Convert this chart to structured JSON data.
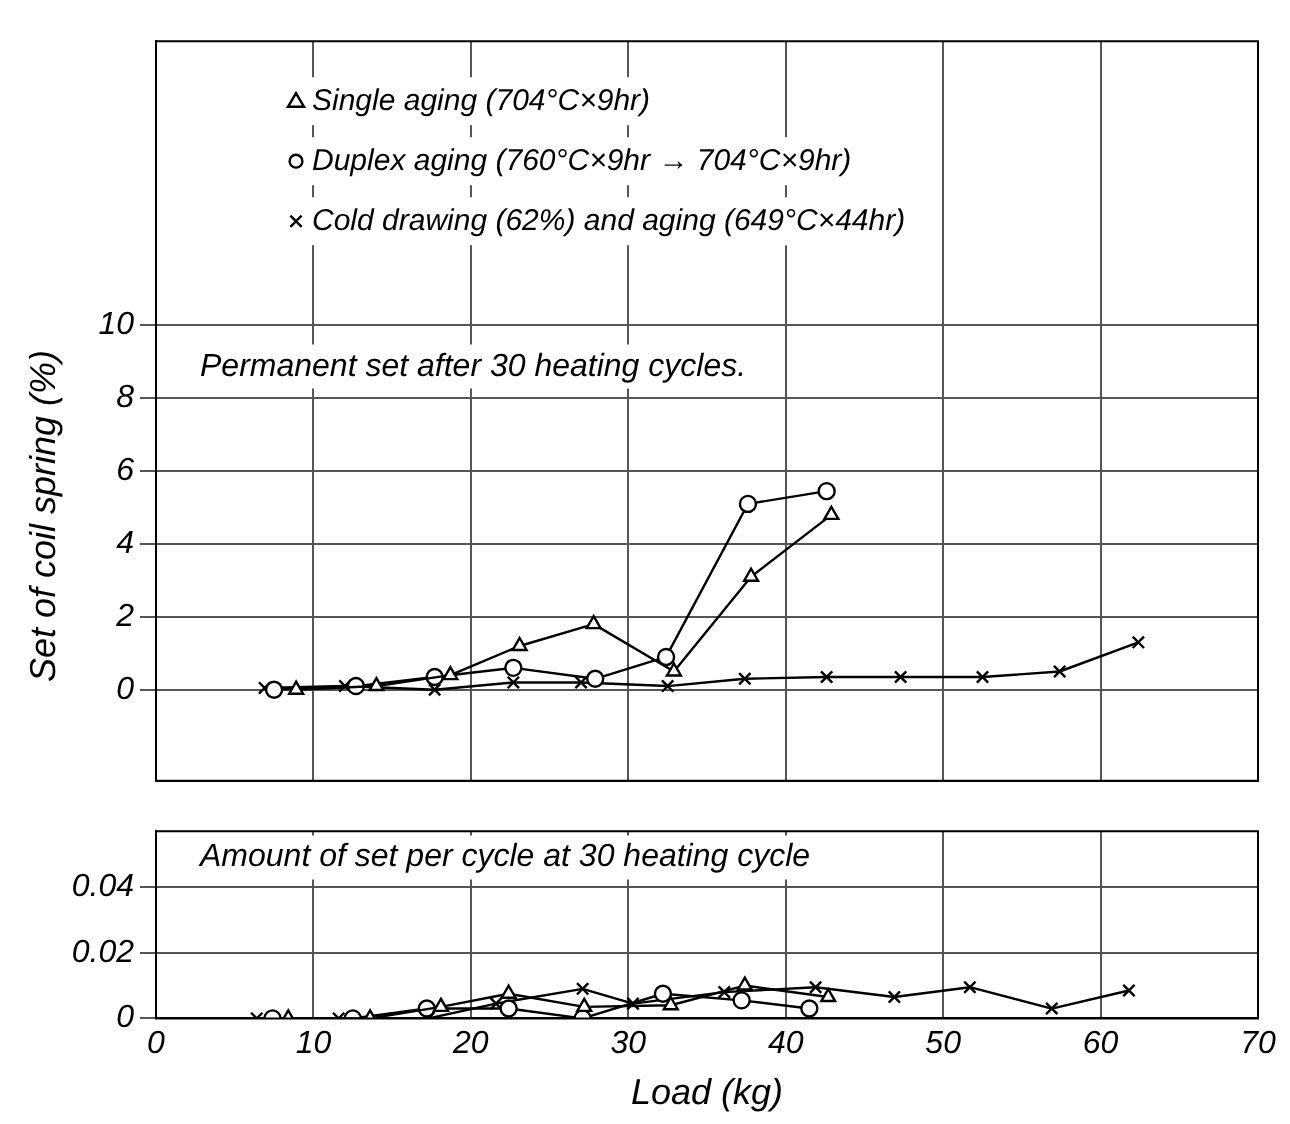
{
  "chart_data": [
    {
      "type": "line",
      "ylabel": "Set of coil spring (%)",
      "annotations": [
        "Permanent set after 30 heating cycles."
      ],
      "xlim": [
        0,
        70
      ],
      "xticks": [
        0,
        10,
        20,
        30,
        40,
        50,
        60,
        70
      ],
      "ylim": [
        -2.5,
        17.8
      ],
      "yticks": [
        0,
        2,
        4,
        6,
        8,
        10
      ],
      "tick_labels": "y",
      "grid": true,
      "legend": "top left",
      "line_style": "solid",
      "series": [
        {
          "name": "Single aging (704°C×9hr)",
          "color": "#000000",
          "marker": "triangle",
          "x": [
            8.9,
            14.0,
            18.7,
            23.1,
            27.8,
            32.9,
            37.8,
            42.9
          ],
          "values": [
            0,
            0.1,
            0.4,
            1.2,
            1.8,
            0.5,
            3.1,
            4.8
          ]
        },
        {
          "name": "Duplex aging (760°C×9hr → 704°C×9hr)",
          "color": "#000000",
          "marker": "circle",
          "x": [
            7.5,
            12.7,
            17.7,
            22.7,
            27.9,
            32.4,
            37.6,
            42.6
          ],
          "values": [
            0,
            0.1,
            0.35,
            0.6,
            0.3,
            0.9,
            5.1,
            5.45
          ]
        },
        {
          "name": "Cold drawing (62%) and aging (649°C×44hr)",
          "color": "#000000",
          "marker": "cross",
          "x": [
            6.9,
            12.0,
            17.7,
            22.7,
            27.0,
            32.5,
            37.4,
            42.6,
            47.3,
            52.5,
            57.4,
            62.4
          ],
          "values": [
            0.05,
            0.1,
            0,
            0.2,
            0.2,
            0.1,
            0.3,
            0.35,
            0.35,
            0.35,
            0.5,
            1.3
          ]
        }
      ]
    },
    {
      "type": "line",
      "xlabel": "Load (kg)",
      "annotations": [
        "Amount of set per cycle at 30 heating cycle"
      ],
      "xlim": [
        0,
        70
      ],
      "xticks": [
        0,
        10,
        20,
        30,
        40,
        50,
        60,
        70
      ],
      "ylim": [
        0,
        0.057
      ],
      "yticks": [
        0,
        0.02,
        0.04
      ],
      "grid": true,
      "line_style": "solid",
      "series": [
        {
          "color": "#000000",
          "marker": "triangle",
          "x": [
            8.4,
            13.6,
            18.1,
            22.4,
            27.2,
            32.7,
            37.4,
            42.7
          ],
          "values": [
            0,
            0,
            0.0035,
            0.0075,
            0.0035,
            0.004,
            0.01,
            0.0065
          ]
        },
        {
          "color": "#000000",
          "marker": "circle",
          "x": [
            7.4,
            12.5,
            17.2,
            22.4,
            27.1,
            32.2,
            37.2,
            41.5
          ],
          "values": [
            0,
            0,
            0.003,
            0.003,
            0,
            0.0075,
            0.0055,
            0.003
          ]
        },
        {
          "color": "#000000",
          "marker": "cross",
          "x": [
            6.4,
            11.6,
            17.3,
            21.6,
            27.1,
            30.3,
            36.1,
            41.9,
            46.9,
            51.7,
            56.9,
            61.8
          ],
          "values": [
            0,
            0,
            0,
            0.0045,
            0.009,
            0.0045,
            0.008,
            0.0095,
            0.0065,
            0.0095,
            0.003,
            0.0085
          ]
        }
      ]
    }
  ]
}
